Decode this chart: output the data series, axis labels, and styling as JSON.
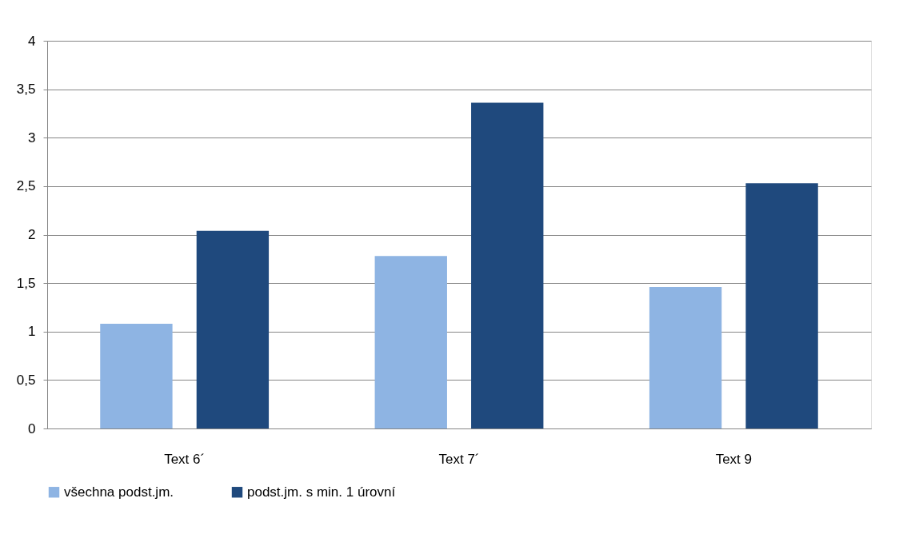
{
  "chart_data": {
    "type": "bar",
    "categories": [
      "Text 6´",
      "Text 7´",
      "Text 9"
    ],
    "series": [
      {
        "name": "všechna podst.jm.",
        "color": "#8eb4e3",
        "values": [
          1.08,
          1.78,
          1.46
        ]
      },
      {
        "name": "podst.jm. s min. 1 úrovní",
        "color": "#1f497d",
        "values": [
          2.04,
          3.36,
          2.53
        ]
      }
    ],
    "ylim": [
      0,
      4
    ],
    "yticks": [
      0,
      {
        "value": 0.5,
        "label": "0,5"
      },
      1,
      {
        "value": 1.5,
        "label": "1,5"
      },
      2,
      {
        "value": 2.5,
        "label": "2,5"
      },
      3,
      {
        "value": 3.5,
        "label": "3,5"
      },
      4
    ],
    "grid": "y",
    "legend": "bottom"
  }
}
